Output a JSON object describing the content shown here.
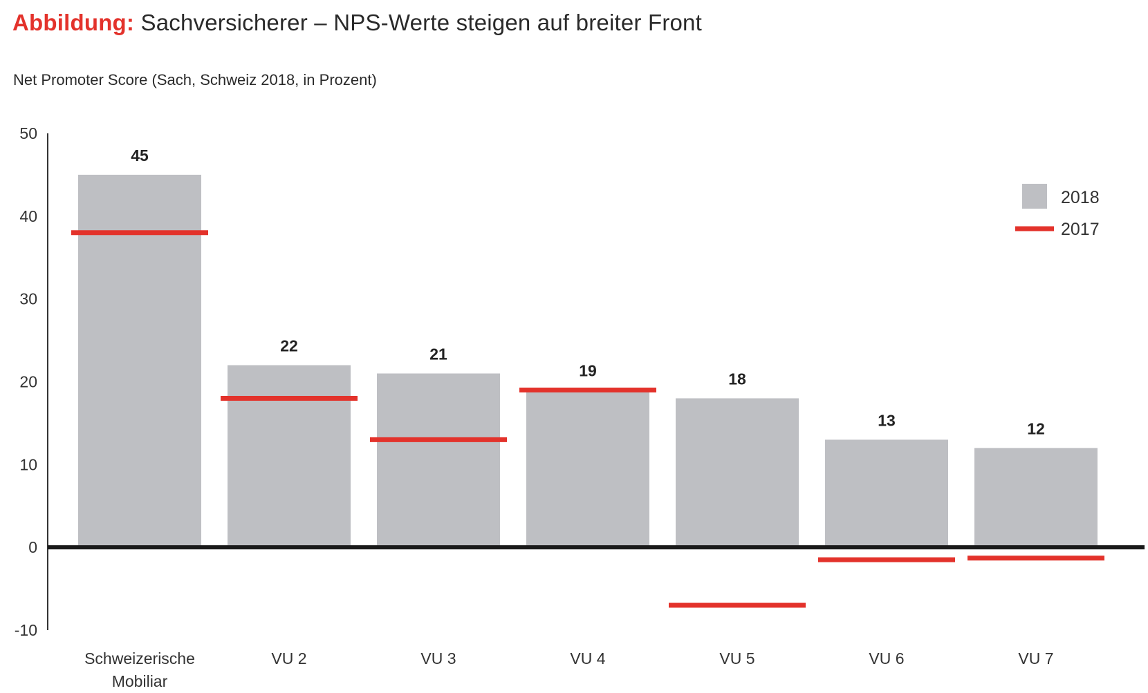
{
  "header": {
    "title_prefix": "Abbildung:",
    "title": "Sachversicherer – NPS-Werte steigen auf breiter Front",
    "subtitle": "Net Promoter Score (Sach, Schweiz 2018, in Prozent)"
  },
  "colors": {
    "accent": "#e3322b",
    "bar_2018": "#bebfc3",
    "zero_line": "#1a1a1a",
    "axis": "#333333"
  },
  "chart_data": {
    "type": "bar",
    "title": "Sachversicherer – NPS-Werte steigen auf breiter Front",
    "subtitle": "Net Promoter Score (Sach, Schweiz 2018, in Prozent)",
    "xlabel": "",
    "ylabel": "",
    "ylim": [
      -10,
      50
    ],
    "yticks": [
      50,
      40,
      30,
      20,
      10,
      0,
      -10
    ],
    "grid": false,
    "legend_position": "top-right",
    "categories": [
      [
        "Schweizerische",
        "Mobiliar"
      ],
      [
        "VU 2"
      ],
      [
        "VU 3"
      ],
      [
        "VU 4"
      ],
      [
        "VU 5"
      ],
      [
        "VU 6"
      ],
      [
        "VU 7"
      ]
    ],
    "series": [
      {
        "name": "2018",
        "style": "bar",
        "values": [
          45,
          22,
          21,
          19,
          18,
          13,
          12
        ],
        "labels": [
          "45",
          "22",
          "21",
          "19",
          "18",
          "13",
          "12"
        ]
      },
      {
        "name": "2017",
        "style": "marker-line",
        "values": [
          38,
          18,
          13,
          19,
          -7,
          -1.5,
          -1.3
        ]
      }
    ]
  }
}
